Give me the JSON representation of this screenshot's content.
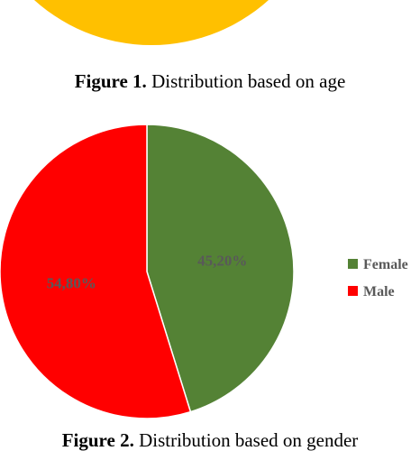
{
  "figure1": {
    "caption_label": "Figure 1.",
    "caption": "Distribution based on age"
  },
  "chart_data": {
    "type": "pie",
    "categories": [
      "Female",
      "Male"
    ],
    "values": [
      45.2,
      54.8
    ],
    "value_labels": [
      "45,20%",
      "54,80%"
    ],
    "colors": [
      "#548235",
      "#ff0000"
    ],
    "legend": "right",
    "caption_label": "Figure 2.",
    "caption": "Distribution based on gender"
  }
}
